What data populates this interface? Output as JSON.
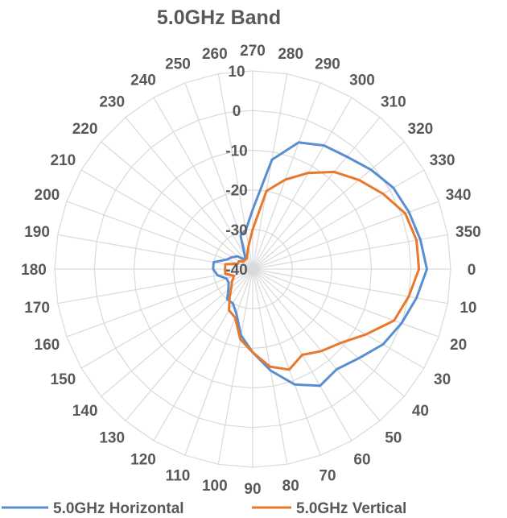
{
  "chart_data": {
    "type": "polar-line",
    "title": "5.0GHz Band",
    "angle_ticks": [
      "0",
      "10",
      "20",
      "30",
      "40",
      "50",
      "60",
      "70",
      "80",
      "90",
      "100",
      "110",
      "120",
      "130",
      "140",
      "150",
      "160",
      "170",
      "180",
      "190",
      "200",
      "210",
      "220",
      "230",
      "240",
      "250",
      "260",
      "270",
      "280",
      "290",
      "300",
      "310",
      "320",
      "330",
      "340",
      "350"
    ],
    "radial_ticks": [
      "-40",
      "-30",
      "-20",
      "-10",
      "0",
      "10"
    ],
    "r_range": [
      -40,
      10
    ],
    "grid": true,
    "legend_position": "bottom",
    "series": [
      {
        "name": "5.0GHz Horizontal",
        "color": "#5b8ed0",
        "angles": [
          0,
          10,
          20,
          30,
          40,
          50,
          60,
          70,
          80,
          90,
          100,
          110,
          120,
          130,
          140,
          150,
          160,
          170,
          180,
          190,
          200,
          210,
          220,
          230,
          240,
          250,
          260,
          270,
          280,
          290,
          300,
          310,
          320,
          330,
          340,
          350
        ],
        "values": [
          4,
          2,
          0,
          -2,
          -5,
          -7,
          -6,
          -9,
          -14,
          -19,
          -23,
          -28,
          -30,
          -30,
          -32,
          -33,
          -33,
          -31,
          -30,
          -30,
          -33,
          -34,
          -35,
          -37,
          -36,
          -31,
          -30,
          -25,
          -12,
          -6,
          -4,
          -3,
          -1,
          1,
          2,
          3
        ]
      },
      {
        "name": "5.0GHz Vertical",
        "color": "#e8782c",
        "angles": [
          0,
          10,
          20,
          30,
          40,
          50,
          60,
          70,
          80,
          90,
          100,
          110,
          120,
          130,
          140,
          150,
          160,
          170,
          180,
          190,
          200,
          210,
          220,
          230,
          240,
          250,
          260,
          270,
          280,
          290,
          300,
          310,
          320,
          330,
          340,
          350
        ],
        "values": [
          2,
          0,
          -2,
          -7,
          -11,
          -13,
          -15,
          -13,
          -15,
          -19,
          -22,
          -27,
          -28,
          -31,
          -33,
          -34,
          -35,
          -33,
          -33,
          -33,
          -36,
          -36,
          -37,
          -37,
          -37,
          -36,
          -34,
          -30,
          -20,
          -16,
          -12,
          -8,
          -5,
          -2,
          1,
          2
        ]
      }
    ]
  }
}
